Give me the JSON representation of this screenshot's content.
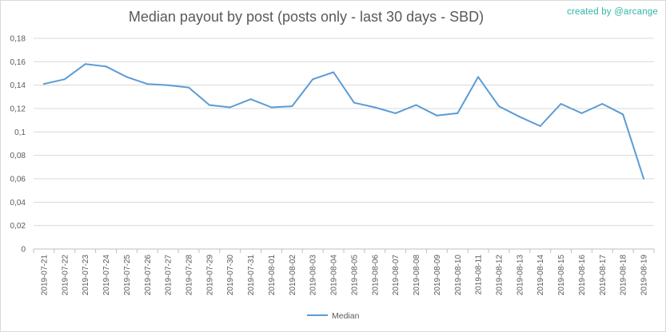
{
  "header": {
    "credit": "created by @arcange"
  },
  "chart_data": {
    "type": "line",
    "title": "Median payout by post (posts only - last 30 days - SBD)",
    "xlabel": "",
    "ylabel": "",
    "ylim": [
      0,
      0.18
    ],
    "yticks": [
      "0",
      "0,02",
      "0,04",
      "0,06",
      "0,08",
      "0,1",
      "0,12",
      "0,14",
      "0,16",
      "0,18"
    ],
    "grid": true,
    "legend_position": "bottom",
    "colors": {
      "series": "#5b9bd5",
      "grid": "#d9d9d9",
      "text": "#595959",
      "credit": "#33b5a8"
    },
    "categories": [
      "2019-07-21",
      "2019-07-22",
      "2019-07-23",
      "2019-07-24",
      "2019-07-25",
      "2019-07-26",
      "2019-07-27",
      "2019-07-28",
      "2019-07-29",
      "2019-07-30",
      "2019-07-31",
      "2019-08-01",
      "2019-08-02",
      "2019-08-03",
      "2019-08-04",
      "2019-08-05",
      "2019-08-06",
      "2019-08-07",
      "2019-08-08",
      "2019-08-09",
      "2019-08-10",
      "2019-08-11",
      "2019-08-12",
      "2019-08-13",
      "2019-08-14",
      "2019-08-15",
      "2019-08-16",
      "2019-08-17",
      "2019-08-18",
      "2019-08-19"
    ],
    "series": [
      {
        "name": "Median",
        "values": [
          0.141,
          0.145,
          0.158,
          0.156,
          0.147,
          0.141,
          0.14,
          0.138,
          0.123,
          0.121,
          0.128,
          0.121,
          0.122,
          0.145,
          0.151,
          0.125,
          0.121,
          0.116,
          0.123,
          0.114,
          0.116,
          0.147,
          0.122,
          0.113,
          0.105,
          0.124,
          0.116,
          0.124,
          0.115,
          0.06
        ]
      }
    ]
  }
}
